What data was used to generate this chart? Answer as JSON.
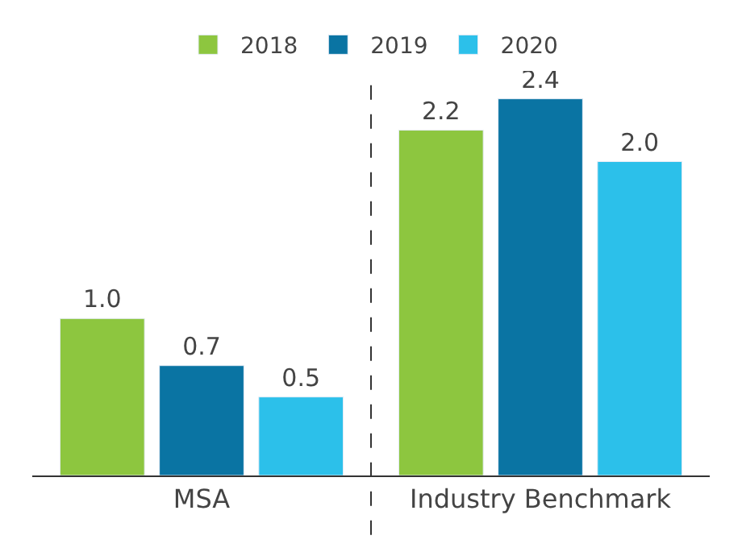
{
  "chart_data": {
    "type": "bar",
    "categories": [
      "MSA",
      "Industry Benchmark"
    ],
    "series": [
      {
        "name": "2018",
        "color": "#8dc63f",
        "values": [
          1.0,
          2.2
        ],
        "value_labels": [
          "1.0",
          "2.2"
        ]
      },
      {
        "name": "2019",
        "color": "#0a74a3",
        "values": [
          0.7,
          2.4
        ],
        "value_labels": [
          "0.7",
          "2.4"
        ]
      },
      {
        "name": "2020",
        "color": "#2cc0ea",
        "values": [
          0.5,
          2.0
        ],
        "value_labels": [
          "0.5",
          "2.0"
        ]
      }
    ],
    "legend": "top"
  }
}
